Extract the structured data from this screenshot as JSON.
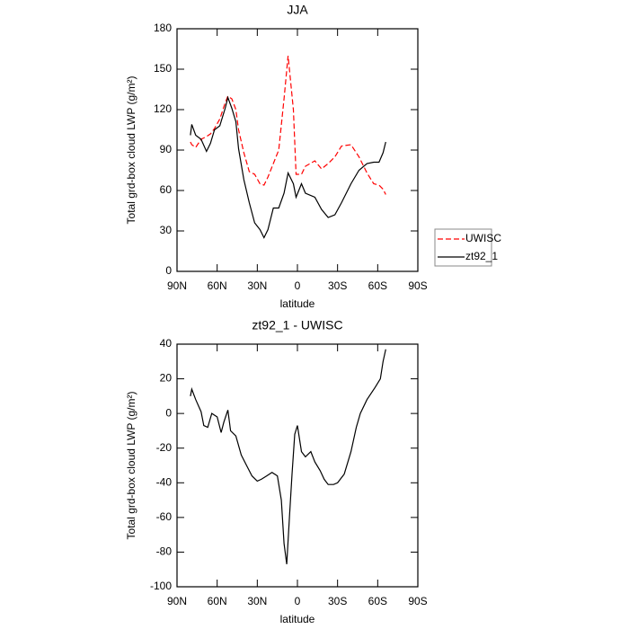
{
  "chart_data": [
    {
      "type": "line",
      "title": "JJA",
      "xlabel": "latitude",
      "ylabel": "Total grd-box cloud LWP (g/m²)",
      "x": [
        80,
        79,
        76,
        72,
        68,
        65,
        62,
        58,
        54,
        52,
        49,
        46,
        44,
        40,
        36,
        32,
        28,
        25,
        22,
        18,
        14,
        10,
        7,
        3,
        1,
        -3,
        -6,
        -13,
        -18,
        -23,
        -28,
        -33,
        -40,
        -46,
        -52,
        -57,
        -61,
        -64,
        -66
      ],
      "series": [
        {
          "name": "UWISC",
          "color": "#ff0000",
          "line_style": "dashed",
          "values": [
            96,
            94,
            92,
            98,
            100,
            102,
            106,
            113,
            125,
            130,
            128,
            120,
            105,
            88,
            74,
            72,
            65,
            64,
            70,
            80,
            90,
            128,
            160,
            120,
            72,
            72,
            78,
            82,
            76,
            80,
            85,
            93,
            94,
            85,
            73,
            65,
            64,
            61,
            57
          ]
        },
        {
          "name": "zt92_1",
          "color": "#000000",
          "line_style": "solid",
          "values": [
            101,
            109,
            101,
            98,
            89,
            95,
            105,
            108,
            121,
            129,
            121,
            111,
            91,
            68,
            51,
            36,
            31,
            25,
            31,
            47,
            47,
            58,
            73,
            65,
            55,
            65,
            58,
            55,
            46,
            40,
            42,
            51,
            65,
            75,
            80,
            81,
            81,
            88,
            96
          ]
        }
      ],
      "xlim": [
        90,
        -90
      ],
      "xticks": [
        {
          "value": 90,
          "label": "90N"
        },
        {
          "value": 60,
          "label": "60N"
        },
        {
          "value": 30,
          "label": "30N"
        },
        0,
        {
          "value": -30,
          "label": "30S"
        },
        {
          "value": -60,
          "label": "60S"
        },
        {
          "value": -90,
          "label": "90S"
        }
      ],
      "ylim": [
        0,
        180
      ],
      "yticks": [
        0,
        30,
        60,
        90,
        120,
        150,
        180
      ],
      "legend": "right"
    },
    {
      "type": "line",
      "title": "zt92_1 - UWISC",
      "xlabel": "latitude",
      "ylabel": "Total grd-box cloud LWP (g/m²)",
      "x": [
        80,
        79,
        76,
        72,
        70,
        67,
        64,
        60,
        57,
        55,
        52,
        50,
        46,
        42,
        38,
        34,
        30,
        27,
        23,
        19,
        15,
        12,
        10,
        8,
        6,
        4,
        2,
        0,
        -3,
        -6,
        -10,
        -13,
        -17,
        -20,
        -23,
        -27,
        -30,
        -35,
        -40,
        -44,
        -47,
        -52,
        -58,
        -62,
        -64,
        -66
      ],
      "series": [
        {
          "color": "#000000",
          "line_style": "solid",
          "values": [
            10,
            14,
            8,
            1,
            -7,
            -8,
            0,
            -2,
            -11,
            -5,
            2,
            -10,
            -13,
            -24,
            -30,
            -36,
            -39,
            -38,
            -36,
            -34,
            -36,
            -50,
            -75,
            -87,
            -60,
            -35,
            -12,
            -7,
            -22,
            -25,
            -22,
            -28,
            -33,
            -38,
            -41,
            -41,
            -40,
            -35,
            -22,
            -8,
            0,
            8,
            15,
            20,
            30,
            37
          ]
        }
      ],
      "xlim": [
        90,
        -90
      ],
      "xticks": [
        {
          "value": 90,
          "label": "90N"
        },
        {
          "value": 60,
          "label": "60N"
        },
        {
          "value": 30,
          "label": "30N"
        },
        0,
        {
          "value": -30,
          "label": "30S"
        },
        {
          "value": -60,
          "label": "60S"
        },
        {
          "value": -90,
          "label": "90S"
        }
      ],
      "ylim": [
        -100,
        40
      ],
      "yticks": [
        -100,
        -80,
        -60,
        -40,
        -20,
        0,
        20,
        40
      ]
    }
  ]
}
